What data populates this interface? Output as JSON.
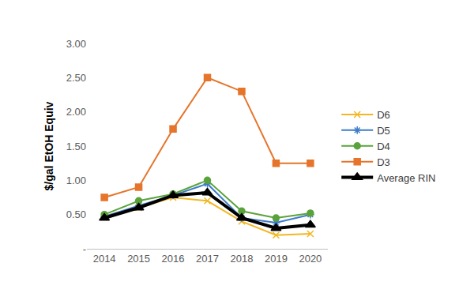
{
  "chart_data": {
    "type": "line",
    "y_label": "$/gal EtOH Equiv",
    "categories": [
      "2014",
      "2015",
      "2016",
      "2017",
      "2018",
      "2019",
      "2020"
    ],
    "series": [
      {
        "name": "D6",
        "color": "#f2b722",
        "marker": "x",
        "line_style": "solid",
        "values": [
          0.48,
          0.6,
          0.75,
          0.7,
          0.4,
          0.2,
          0.22
        ]
      },
      {
        "name": "D5",
        "color": "#3d7cc9",
        "marker": "asterisk",
        "line_style": "solid",
        "values": [
          0.47,
          0.63,
          0.78,
          0.95,
          0.45,
          0.38,
          0.5
        ]
      },
      {
        "name": "D4",
        "color": "#5aa33c",
        "marker": "circle",
        "line_style": "solid",
        "values": [
          0.5,
          0.7,
          0.8,
          1.0,
          0.55,
          0.45,
          0.52
        ]
      },
      {
        "name": "D3",
        "color": "#e6742a",
        "marker": "square",
        "line_style": "solid",
        "values": [
          0.75,
          0.9,
          1.75,
          2.5,
          2.3,
          1.25,
          1.25
        ]
      },
      {
        "name": "Average RIN",
        "color": "#000000",
        "marker": "triangle",
        "line_style": "solid",
        "values": [
          0.45,
          0.6,
          0.78,
          0.82,
          0.45,
          0.3,
          0.35
        ]
      }
    ],
    "ylim": [
      0,
      3
    ],
    "yticks": [
      {
        "value": 0,
        "label": "-"
      },
      {
        "value": 0.5,
        "label": "0.50"
      },
      {
        "value": 1,
        "label": "1.00"
      },
      {
        "value": 1.5,
        "label": "1.50"
      },
      {
        "value": 2,
        "label": "2.00"
      },
      {
        "value": 2.5,
        "label": "2.50"
      },
      {
        "value": 3,
        "label": "3.00"
      }
    ],
    "grid": false,
    "legend": "right"
  }
}
